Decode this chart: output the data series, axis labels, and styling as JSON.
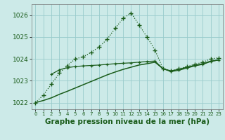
{
  "title": "Graphe pression niveau de la mer (hPa)",
  "bg_color": "#cceae8",
  "grid_color": "#99cccc",
  "line_color": "#1a5c1a",
  "xlim": [
    -0.5,
    23.5
  ],
  "ylim": [
    1021.7,
    1026.5
  ],
  "yticks": [
    1022,
    1023,
    1024,
    1025,
    1026
  ],
  "xticks": [
    0,
    1,
    2,
    3,
    4,
    5,
    6,
    7,
    8,
    9,
    10,
    11,
    12,
    13,
    14,
    15,
    16,
    17,
    18,
    19,
    20,
    21,
    22,
    23
  ],
  "series1_x": [
    0,
    1,
    2,
    3,
    4,
    5,
    6,
    7,
    8,
    9,
    10,
    11,
    12,
    13,
    14,
    15,
    16,
    17,
    18,
    19,
    20,
    21,
    22,
    23
  ],
  "series1_y": [
    1022.0,
    1022.35,
    1022.85,
    1023.35,
    1023.7,
    1024.0,
    1024.1,
    1024.3,
    1024.55,
    1024.9,
    1025.4,
    1025.85,
    1026.1,
    1025.55,
    1025.0,
    1024.4,
    1023.55,
    1023.45,
    1023.55,
    1023.65,
    1023.75,
    1023.85,
    1024.0,
    1024.05
  ],
  "series2_x": [
    2,
    3,
    4,
    5,
    6,
    7,
    8,
    9,
    10,
    11,
    12,
    13,
    14,
    15,
    16,
    17,
    18,
    19,
    20,
    21,
    22,
    23
  ],
  "series2_y": [
    1023.3,
    1023.5,
    1023.6,
    1023.65,
    1023.68,
    1023.7,
    1023.72,
    1023.75,
    1023.78,
    1023.8,
    1023.82,
    1023.85,
    1023.88,
    1023.9,
    1023.55,
    1023.42,
    1023.48,
    1023.58,
    1023.68,
    1023.75,
    1023.88,
    1023.95
  ],
  "series3_x": [
    0,
    1,
    2,
    3,
    4,
    5,
    6,
    7,
    8,
    9,
    10,
    11,
    12,
    13,
    14,
    15,
    16,
    17,
    18,
    19,
    20,
    21,
    22,
    23
  ],
  "series3_y": [
    1022.0,
    1022.1,
    1022.22,
    1022.38,
    1022.52,
    1022.67,
    1022.82,
    1022.97,
    1023.12,
    1023.27,
    1023.4,
    1023.52,
    1023.62,
    1023.72,
    1023.78,
    1023.85,
    1023.55,
    1023.45,
    1023.52,
    1023.62,
    1023.7,
    1023.78,
    1023.9,
    1023.95
  ]
}
